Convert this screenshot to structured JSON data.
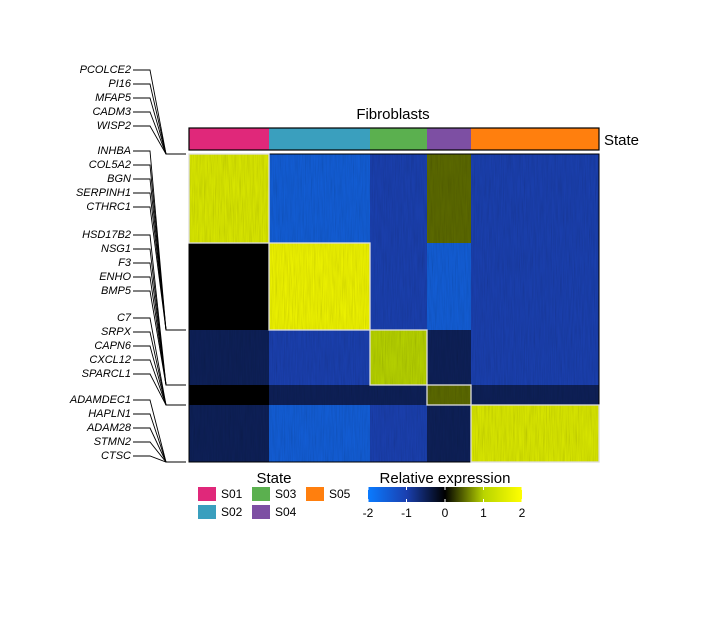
{
  "chart_data": {
    "type": "heatmap",
    "title": "Fibroblasts",
    "annotation_label": "State",
    "states": [
      {
        "name": "S01",
        "color": "#e0287a"
      },
      {
        "name": "S02",
        "color": "#3a9fbe"
      },
      {
        "name": "S03",
        "color": "#5bb04f"
      },
      {
        "name": "S04",
        "color": "#7d4fa3"
      },
      {
        "name": "S05",
        "color": "#ff7f0e"
      }
    ],
    "gene_groups": [
      [
        "PCOLCE2",
        "PI16",
        "MFAP5",
        "CADM3",
        "WISP2"
      ],
      [
        "INHBA",
        "COL5A2",
        "BGN",
        "SERPINH1",
        "CTHRC1"
      ],
      [
        "HSD17B2",
        "NSG1",
        "F3",
        "ENHO",
        "BMP5"
      ],
      [
        "C7",
        "SRPX",
        "CAPN6",
        "CXCL12",
        "SPARCL1"
      ],
      [
        "ADAMDEC1",
        "HAPLN1",
        "ADAM28",
        "STMN2",
        "CTSC"
      ]
    ],
    "values": [
      [
        1.5,
        -1.5,
        -1,
        0.5,
        -1
      ],
      [
        0,
        1.8,
        -1,
        -1.5,
        -1
      ],
      [
        -0.5,
        -1,
        1,
        -0.5,
        -1
      ],
      [
        0,
        -0.5,
        -0.5,
        0.5,
        -0.5
      ],
      [
        -0.5,
        -1.5,
        -1,
        -0.5,
        1.5
      ]
    ],
    "legend_title": "State",
    "colorbar": {
      "title": "Relative expression",
      "lim": [
        -2,
        2
      ],
      "ticks": [
        -2,
        -1,
        0,
        1,
        2
      ],
      "colors": [
        "#0a7bff",
        "#1a40b0",
        "#000000",
        "#b8d400",
        "#ffff00"
      ]
    }
  }
}
